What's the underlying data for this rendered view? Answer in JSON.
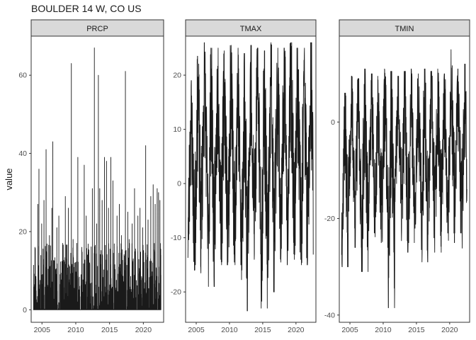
{
  "chart_data": {
    "type": "line",
    "title": "BOULDER 14 W, CO US",
    "ylabel": "value",
    "xlabel": "",
    "facet_scales": "free_y",
    "theme": "bw",
    "line_color": "#1a1a1a",
    "strip_fill": "#d9d9d9",
    "x_range": [
      2003.4,
      2023.0
    ],
    "x_ticks": [
      2005,
      2010,
      2015,
      2020
    ],
    "x_tick_labels": [
      "2005",
      "2010",
      "2015",
      "2020"
    ],
    "panels": [
      {
        "name": "PRCP",
        "ylim": [
          -3.2,
          70
        ],
        "y_ticks": [
          0,
          20,
          40,
          60
        ],
        "y_tick_labels": [
          "0",
          "20",
          "40",
          "60"
        ],
        "seed": 11,
        "peaks": [
          [
            2003.95,
            16
          ],
          [
            2004.4,
            27
          ],
          [
            2004.55,
            36
          ],
          [
            2004.95,
            22
          ],
          [
            2005.3,
            28
          ],
          [
            2005.6,
            41
          ],
          [
            2006.1,
            19
          ],
          [
            2006.45,
            26
          ],
          [
            2006.6,
            43
          ],
          [
            2007.2,
            21
          ],
          [
            2007.5,
            24
          ],
          [
            2008.05,
            17
          ],
          [
            2008.45,
            29
          ],
          [
            2008.9,
            26
          ],
          [
            2009.35,
            63
          ],
          [
            2009.6,
            18
          ],
          [
            2010.15,
            17
          ],
          [
            2010.3,
            39
          ],
          [
            2010.9,
            16
          ],
          [
            2011.25,
            37
          ],
          [
            2011.55,
            24
          ],
          [
            2012.05,
            12
          ],
          [
            2012.45,
            31
          ],
          [
            2012.75,
            67
          ],
          [
            2013.1,
            22
          ],
          [
            2013.35,
            60
          ],
          [
            2013.55,
            31
          ],
          [
            2013.9,
            28
          ],
          [
            2014.25,
            39
          ],
          [
            2014.55,
            38
          ],
          [
            2014.85,
            26
          ],
          [
            2015.2,
            39
          ],
          [
            2015.5,
            33
          ],
          [
            2016.1,
            24
          ],
          [
            2016.45,
            27
          ],
          [
            2016.75,
            19
          ],
          [
            2017.35,
            61
          ],
          [
            2017.7,
            25
          ],
          [
            2017.9,
            18
          ],
          [
            2018.35,
            22
          ],
          [
            2018.7,
            31
          ],
          [
            2019.2,
            24
          ],
          [
            2019.5,
            26
          ],
          [
            2019.9,
            21
          ],
          [
            2020.35,
            42
          ],
          [
            2020.7,
            23
          ],
          [
            2021.1,
            29
          ],
          [
            2021.45,
            32
          ],
          [
            2021.75,
            27
          ],
          [
            2022.05,
            31
          ],
          [
            2022.25,
            30
          ],
          [
            2022.45,
            28
          ]
        ]
      },
      {
        "name": "TMAX",
        "ylim": [
          -25.6,
          27.2
        ],
        "y_ticks": [
          -20,
          -10,
          0,
          10,
          20
        ],
        "y_tick_labels": [
          "-20",
          "-10",
          "0",
          "10",
          "20"
        ],
        "seed": 23,
        "annual_max": [
          19,
          23.5,
          26,
          25,
          25,
          24.5,
          25.5,
          25,
          24,
          25.5,
          25,
          24.5,
          26,
          25,
          25,
          26,
          25,
          25,
          26,
          24
        ],
        "annual_min": [
          -16,
          -16.5,
          -12,
          -19,
          -14,
          -15,
          -14.5,
          -15,
          -23.5,
          -14,
          -13,
          -23,
          -20,
          -14.5,
          -15,
          -13,
          -14,
          -15,
          -17.5,
          -13
        ]
      },
      {
        "name": "TMIN",
        "ylim": [
          -41.5,
          17.8
        ],
        "y_ticks": [
          -40,
          -20,
          0
        ],
        "y_tick_labels": [
          "-40",
          "-20",
          "0"
        ],
        "seed": 37,
        "annual_max": [
          6,
          9.5,
          9,
          11,
          10,
          9.5,
          11,
          10.5,
          9.5,
          10.5,
          11,
          10,
          11,
          10.5,
          11,
          10,
          15,
          11,
          12,
          11
        ],
        "annual_min": [
          -30,
          -22,
          -26,
          -31,
          -23,
          -25,
          -26,
          -38.5,
          -22,
          -27,
          -25,
          -22,
          -29,
          -24,
          -27,
          -23,
          -25,
          -23,
          -29,
          -24
        ]
      }
    ]
  }
}
